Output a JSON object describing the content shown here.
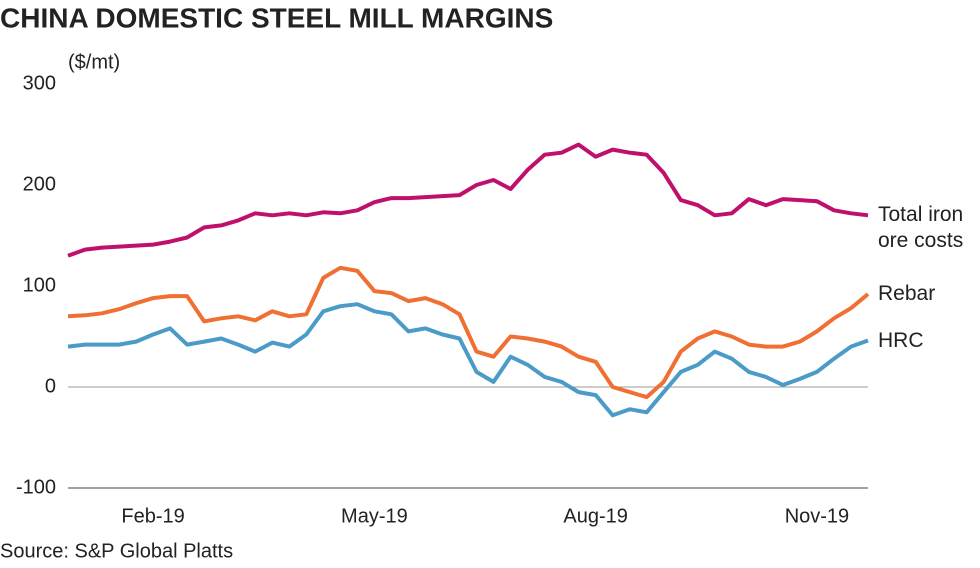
{
  "chart_data": {
    "type": "line",
    "title": "CHINA DOMESTIC STEEL MILL MARGINS",
    "y_label": "($/mt)",
    "source": "Source: S&P Global Platts",
    "categories": [
      null,
      null,
      null,
      null,
      null,
      "Feb-19",
      null,
      null,
      null,
      null,
      null,
      null,
      null,
      null,
      null,
      null,
      null,
      null,
      "May-19",
      null,
      null,
      null,
      null,
      null,
      null,
      null,
      null,
      null,
      null,
      null,
      null,
      "Aug-19",
      null,
      null,
      null,
      null,
      null,
      null,
      null,
      null,
      null,
      null,
      null,
      null,
      "Nov-19",
      null,
      null,
      null
    ],
    "series": [
      {
        "name": "Total iron ore costs",
        "color": "#c0106e",
        "values": [
          130,
          136,
          138,
          139,
          140,
          141,
          144,
          148,
          158,
          160,
          165,
          172,
          170,
          172,
          170,
          173,
          172,
          175,
          183,
          187,
          187,
          188,
          189,
          190,
          200,
          205,
          196,
          215,
          230,
          232,
          240,
          228,
          235,
          232,
          230,
          212,
          185,
          180,
          170,
          172,
          186,
          180,
          186,
          185,
          184,
          175,
          172,
          170
        ]
      },
      {
        "name": "Rebar",
        "color": "#f07033",
        "values": [
          70,
          71,
          73,
          77,
          83,
          88,
          90,
          90,
          65,
          68,
          70,
          66,
          75,
          70,
          72,
          108,
          118,
          115,
          95,
          93,
          85,
          88,
          82,
          72,
          35,
          30,
          50,
          48,
          45,
          40,
          30,
          25,
          0,
          -5,
          -10,
          5,
          35,
          48,
          55,
          50,
          42,
          40,
          40,
          45,
          55,
          68,
          78,
          92
        ]
      },
      {
        "name": "HRC",
        "color": "#4a9bc7",
        "values": [
          40,
          42,
          42,
          42,
          45,
          52,
          58,
          42,
          45,
          48,
          42,
          35,
          44,
          40,
          52,
          75,
          80,
          82,
          75,
          72,
          55,
          58,
          52,
          48,
          15,
          5,
          30,
          22,
          10,
          5,
          -5,
          -8,
          -28,
          -22,
          -25,
          -5,
          15,
          22,
          35,
          28,
          15,
          10,
          2,
          8,
          15,
          28,
          40,
          46
        ]
      }
    ],
    "ylim": [
      -100,
      300
    ],
    "yticks": [
      -100,
      0,
      100,
      200,
      300
    ]
  }
}
